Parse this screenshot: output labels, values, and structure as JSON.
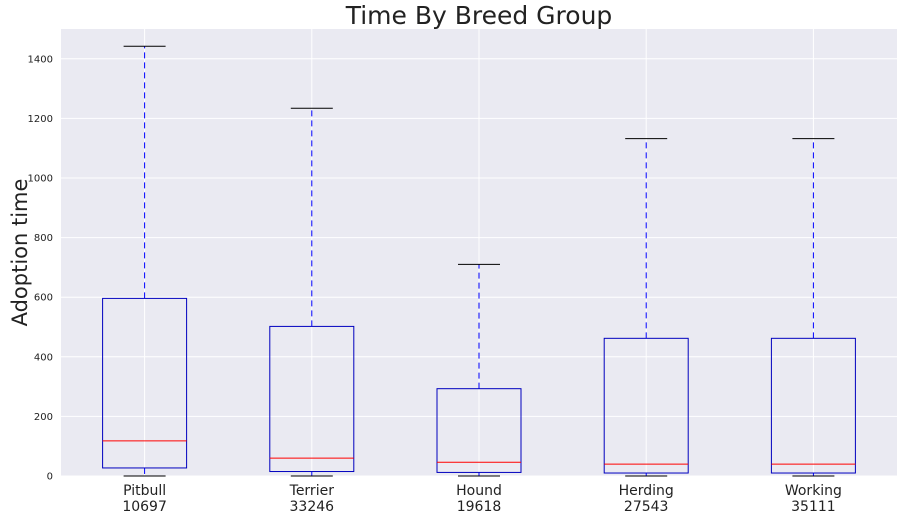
{
  "chart_data": {
    "type": "box",
    "title": "Time By Breed Group",
    "xlabel": "",
    "ylabel": "Adoption time",
    "ylim": [
      0,
      1500
    ],
    "yticks": [
      0,
      200,
      400,
      600,
      800,
      1000,
      1200,
      1400
    ],
    "grid": true,
    "colors": {
      "background": "#eaeaf2",
      "grid": "#ffffff",
      "box": "#0000bf",
      "whisker": "#0000ff",
      "median": "#ff0000",
      "cap": "#000000"
    },
    "categories": [
      {
        "name": "Pitbull",
        "count": "10697",
        "whisker_low": 0,
        "q1": 27,
        "median": 118,
        "q3": 596,
        "whisker_high": 1442
      },
      {
        "name": "Terrier",
        "count": "33246",
        "whisker_low": 0,
        "q1": 15,
        "median": 60,
        "q3": 502,
        "whisker_high": 1234
      },
      {
        "name": "Hound",
        "count": "19618",
        "whisker_low": 0,
        "q1": 12,
        "median": 46,
        "q3": 293,
        "whisker_high": 710
      },
      {
        "name": "Herding",
        "count": "27543",
        "whisker_low": 0,
        "q1": 10,
        "median": 40,
        "q3": 462,
        "whisker_high": 1132
      },
      {
        "name": "Working",
        "count": "35111",
        "whisker_low": 0,
        "q1": 10,
        "median": 40,
        "q3": 462,
        "whisker_high": 1132
      }
    ]
  }
}
